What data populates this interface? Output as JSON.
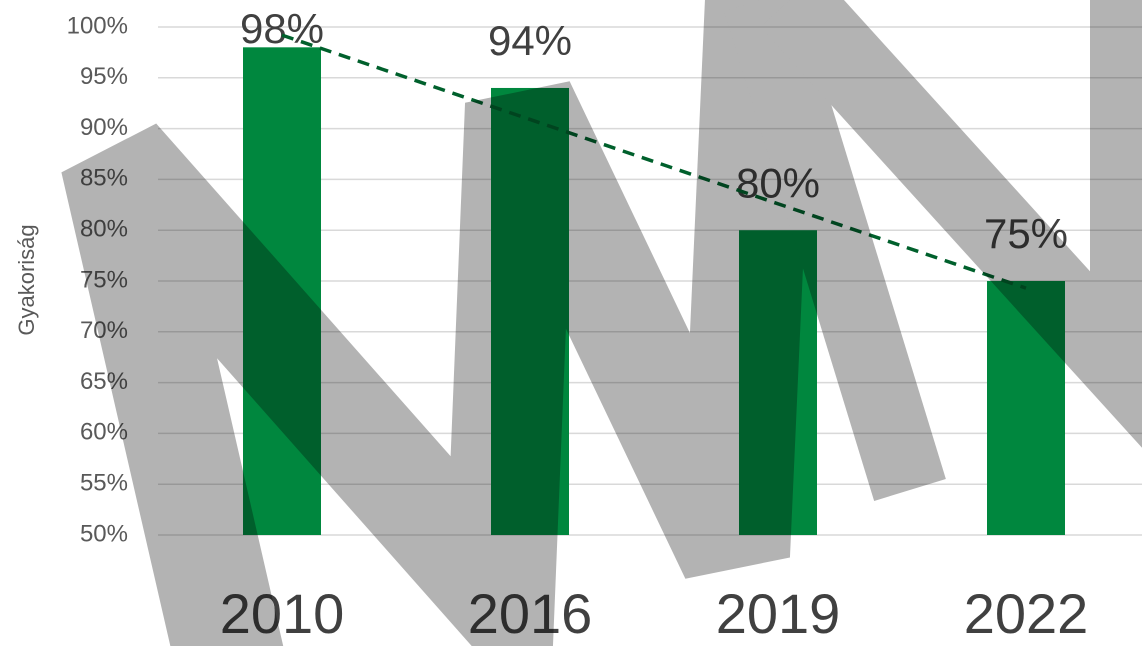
{
  "chart_data": {
    "type": "bar",
    "y_label": "Gyakoriság",
    "categories": [
      "2010",
      "2016",
      "2019",
      "2022"
    ],
    "values": [
      98,
      94,
      80,
      75
    ],
    "value_labels": [
      "98%",
      "94%",
      "80%",
      "75%"
    ],
    "color": "#00873e",
    "ylim": [
      50,
      100
    ],
    "yticks": [
      {
        "value": 50,
        "label": "50%"
      },
      {
        "value": 55,
        "label": "55%"
      },
      {
        "value": 60,
        "label": "60%"
      },
      {
        "value": 65,
        "label": "65%"
      },
      {
        "value": 70,
        "label": "70%"
      },
      {
        "value": 75,
        "label": "75%"
      },
      {
        "value": 80,
        "label": "80%"
      },
      {
        "value": 85,
        "label": "85%"
      },
      {
        "value": 90,
        "label": "90%"
      },
      {
        "value": 95,
        "label": "95%"
      },
      {
        "value": 100,
        "label": "100%"
      }
    ],
    "grid": true,
    "trendline": true,
    "trendline_color": "#00602c"
  }
}
